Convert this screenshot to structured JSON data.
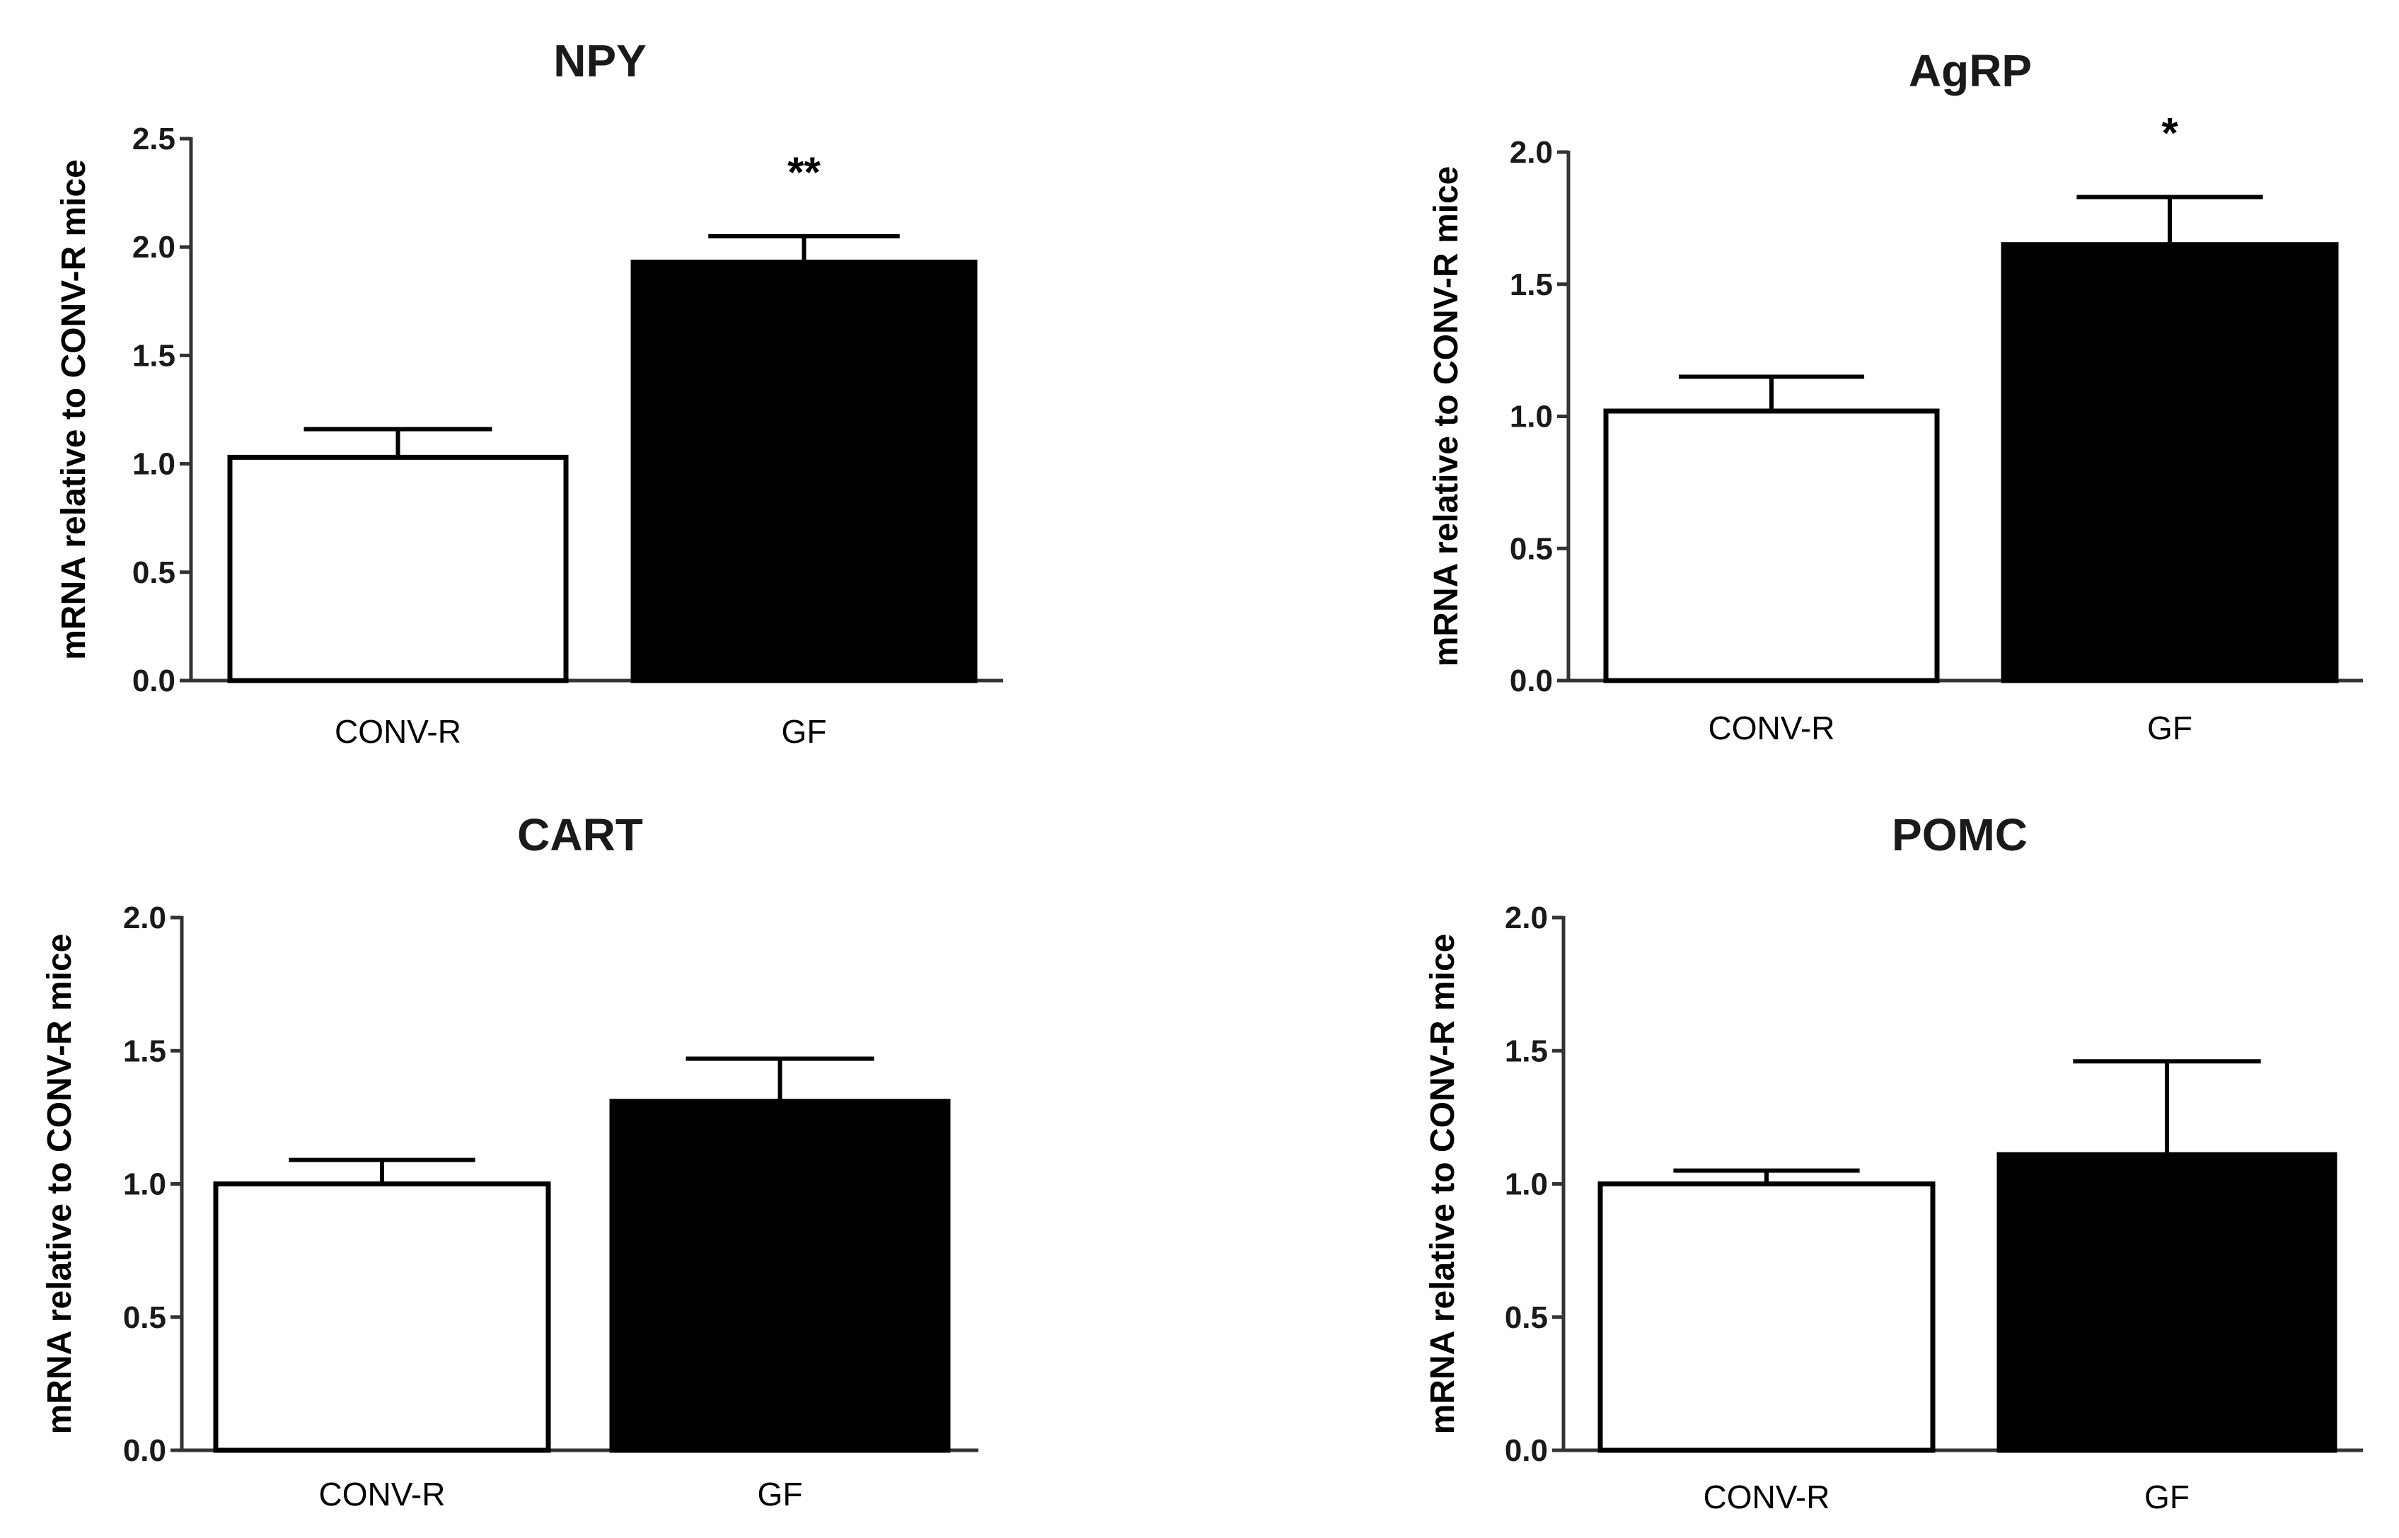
{
  "colors": {
    "conv": "#ffffff",
    "gf": "#000000",
    "stroke": "#000000",
    "axis": "#333333"
  },
  "chart_data": [
    {
      "type": "bar",
      "title": "NPY",
      "xlabel": "",
      "ylabel": "mRNA relative to CONV-R mice",
      "categories": [
        "CONV-R",
        "GF"
      ],
      "values": [
        1.03,
        1.93
      ],
      "errors": [
        0.13,
        0.12
      ],
      "significance": [
        "",
        "**"
      ],
      "ylim": [
        0,
        2.5
      ],
      "yticks": [
        "0.0",
        "0.5",
        "1.0",
        "1.5",
        "2.0",
        "2.5"
      ],
      "bar_colors": [
        "#ffffff",
        "#000000"
      ]
    },
    {
      "type": "bar",
      "title": "AgRP",
      "xlabel": "",
      "ylabel": "mRNA relative to CONV-R mice",
      "categories": [
        "CONV-R",
        "GF"
      ],
      "values": [
        1.02,
        1.65
      ],
      "errors": [
        0.13,
        0.18
      ],
      "significance": [
        "",
        "*"
      ],
      "ylim": [
        0,
        2.0
      ],
      "yticks": [
        "0.0",
        "0.5",
        "1.0",
        "1.5",
        "2.0"
      ],
      "bar_colors": [
        "#ffffff",
        "#000000"
      ]
    },
    {
      "type": "bar",
      "title": "CART",
      "xlabel": "",
      "ylabel": "mRNA relative to CONV-R mice",
      "categories": [
        "CONV-R",
        "GF"
      ],
      "values": [
        1.0,
        1.31
      ],
      "errors": [
        0.09,
        0.16
      ],
      "significance": [
        "",
        ""
      ],
      "ylim": [
        0,
        2.0
      ],
      "yticks": [
        "0.0",
        "0.5",
        "1.0",
        "1.5",
        "2.0"
      ],
      "bar_colors": [
        "#ffffff",
        "#000000"
      ]
    },
    {
      "type": "bar",
      "title": "POMC",
      "xlabel": "",
      "ylabel": "mRNA relative to CONV-R mice",
      "categories": [
        "CONV-R",
        "GF"
      ],
      "values": [
        1.0,
        1.11
      ],
      "errors": [
        0.05,
        0.35
      ],
      "significance": [
        "",
        ""
      ],
      "ylim": [
        0,
        2.0
      ],
      "yticks": [
        "0.0",
        "0.5",
        "1.0",
        "1.5",
        "2.0"
      ],
      "bar_colors": [
        "#ffffff",
        "#000000"
      ]
    }
  ]
}
